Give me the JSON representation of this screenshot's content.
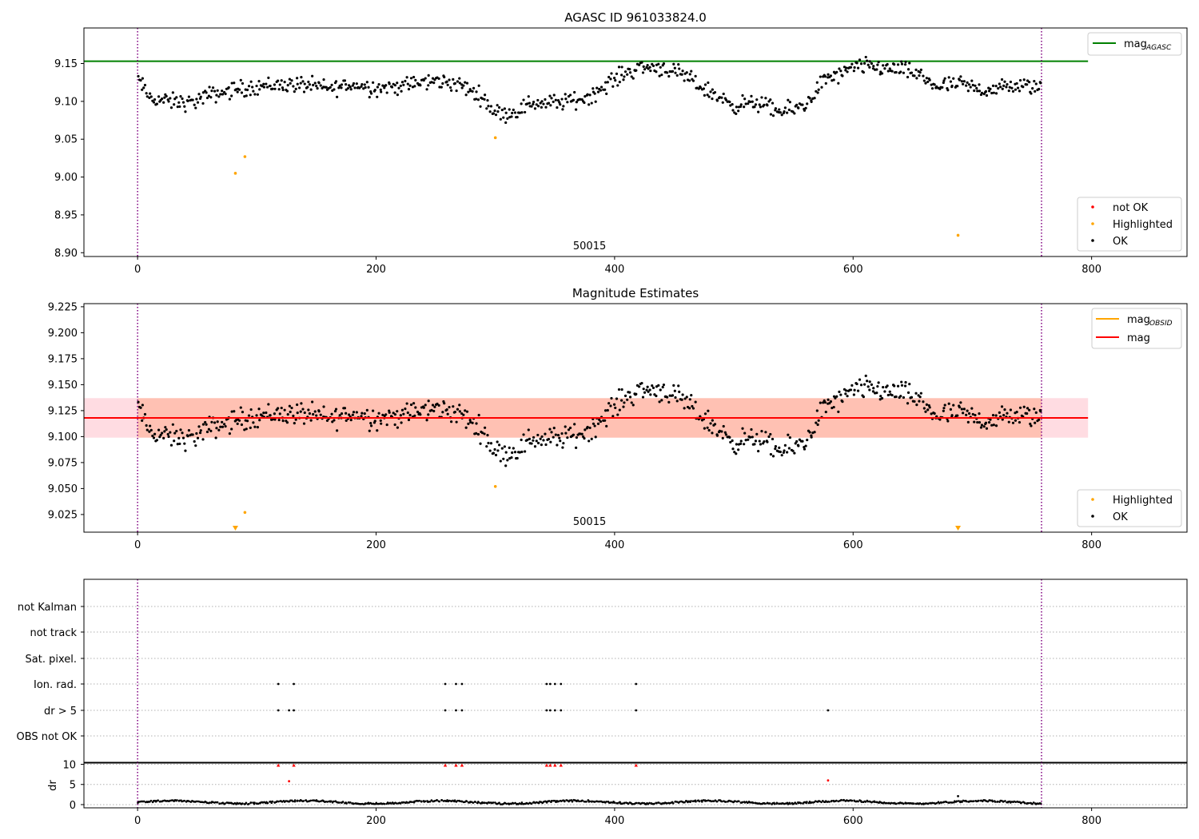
{
  "colors": {
    "ok": "#000000",
    "highlighted": "#ffa500",
    "not_ok": "#ff0000",
    "agasc_line": "#008000",
    "mag_line": "#ff0000",
    "mag_obsid_line": "#ffa500",
    "band_pink": "#ffc0cb",
    "band_orange": "#ffa07a",
    "obs_boundary": "#800080",
    "dr_flagged": "#ff0000"
  },
  "chart_data": [
    {
      "type": "scatter",
      "title": "AGASC ID 961033824.0",
      "xlim": [
        -45,
        880
      ],
      "ylim": [
        8.895,
        9.197
      ],
      "x_ticks": [
        "0",
        "200",
        "400",
        "600",
        "800"
      ],
      "y_ticks": [
        "8.90",
        "8.95",
        "9.00",
        "9.05",
        "9.10",
        "9.15"
      ],
      "y_tick_values": [
        8.9,
        8.95,
        9.0,
        9.05,
        9.1,
        9.15
      ],
      "obs_boundaries": [
        0,
        758
      ],
      "obs_label": "50015",
      "obs_label_x": 379,
      "reference_line": {
        "name": "mag_AGASC",
        "label_main": "mag",
        "label_sub": "AGASC",
        "y": 9.153,
        "x_range": [
          -45,
          797
        ]
      },
      "legend_lines": [
        {
          "label_main": "mag",
          "label_sub": "AGASC",
          "color_key": "agasc_line"
        }
      ],
      "legend_points": [
        {
          "label": "not OK",
          "color_key": "not_ok"
        },
        {
          "label": "Highlighted",
          "color_key": "highlighted"
        },
        {
          "label": "OK",
          "color_key": "ok"
        }
      ],
      "series": [
        {
          "name": "OK",
          "color_key": "ok",
          "generated": "light_curve",
          "x_range": [
            0,
            758
          ],
          "count": 758
        },
        {
          "name": "Highlighted",
          "color_key": "highlighted",
          "x": [
            82,
            90,
            300,
            688
          ],
          "y": [
            9.005,
            9.027,
            9.052,
            8.923
          ]
        }
      ]
    },
    {
      "type": "scatter",
      "title": "Magnitude Estimates",
      "xlim": [
        -45,
        880
      ],
      "ylim": [
        9.008,
        9.228
      ],
      "x_ticks": [
        "0",
        "200",
        "400",
        "600",
        "800"
      ],
      "y_ticks": [
        "9.025",
        "9.050",
        "9.075",
        "9.100",
        "9.125",
        "9.150",
        "9.175",
        "9.200",
        "9.225"
      ],
      "y_tick_values": [
        9.025,
        9.05,
        9.075,
        9.1,
        9.125,
        9.15,
        9.175,
        9.2,
        9.225
      ],
      "obs_boundaries": [
        0,
        758
      ],
      "obs_label": "50015",
      "obs_label_x": 379,
      "mag_line": {
        "y": 9.118,
        "x_range": [
          -45,
          797
        ]
      },
      "band": {
        "y_low": 9.099,
        "y_high": 9.137,
        "x_range": [
          -45,
          797
        ]
      },
      "legend_lines": [
        {
          "label_main": "mag",
          "label_sub": "OBSID",
          "color_key": "mag_obsid_line"
        },
        {
          "label_main": "mag",
          "label_sub": "",
          "color_key": "mag_line"
        }
      ],
      "legend_points": [
        {
          "label": "Highlighted",
          "color_key": "highlighted"
        },
        {
          "label": "OK",
          "color_key": "ok"
        }
      ],
      "series": [
        {
          "name": "OK",
          "color_key": "ok",
          "generated": "light_curve",
          "x_range": [
            0,
            758
          ],
          "count": 758
        },
        {
          "name": "Highlighted",
          "color_key": "highlighted",
          "x": [
            90,
            300
          ],
          "y": [
            9.027,
            9.052
          ]
        },
        {
          "name": "Highlighted (off-scale)",
          "color_key": "highlighted",
          "marker": "triangle-down",
          "x": [
            82,
            688
          ]
        }
      ]
    },
    {
      "type": "scatter",
      "title": "",
      "xlim": [
        -45,
        880
      ],
      "x_ticks": [
        "0",
        "200",
        "400",
        "600",
        "800"
      ],
      "obs_boundaries": [
        0,
        758
      ],
      "flag_rows": [
        "not Kalman",
        "not track",
        "Sat. pixel.",
        "Ion. rad.",
        "dr > 5",
        "OBS not OK"
      ],
      "flags": {
        "Ion. rad.": [
          118,
          131,
          258,
          267,
          272,
          343,
          346,
          350,
          355,
          418
        ],
        "dr > 5": [
          118,
          127,
          131,
          258,
          267,
          272,
          343,
          346,
          350,
          355,
          418,
          579
        ]
      }
    },
    {
      "type": "scatter",
      "title": "",
      "ylabel": "dr",
      "xlim": [
        -45,
        880
      ],
      "ylim": [
        -0.8,
        10.5
      ],
      "x_ticks": [
        "0",
        "200",
        "400",
        "600",
        "800"
      ],
      "y_ticks": [
        "0",
        "5",
        "10"
      ],
      "y_tick_values": [
        0,
        5,
        10
      ],
      "obs_boundaries": [
        0,
        758
      ],
      "series": [
        {
          "name": "dr",
          "color_key": "ok",
          "generated": "dr_curve",
          "x_range": [
            0,
            758
          ],
          "count": 758
        },
        {
          "name": "dr > 5",
          "color_key": "dr_flagged",
          "x": [
            127,
            579
          ],
          "y": [
            5.8,
            6.0
          ]
        },
        {
          "name": "dr clipped",
          "color_key": "dr_flagged",
          "marker": "triangle-up",
          "x": [
            118,
            131,
            258,
            267,
            272,
            343,
            346,
            350,
            355,
            418
          ]
        },
        {
          "name": "dr misc",
          "color_key": "ok",
          "x": [
            688
          ],
          "y": [
            2.1
          ]
        }
      ]
    }
  ]
}
